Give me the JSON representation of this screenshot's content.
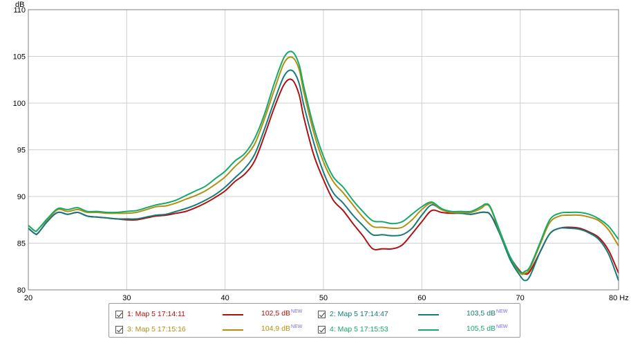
{
  "chart_data": {
    "type": "line",
    "ylabel": "dB",
    "xlim": [
      20,
      80
    ],
    "ylim": [
      80,
      110
    ],
    "x_ticks": [
      "20",
      "30",
      "40",
      "50",
      "60",
      "70",
      "80 Hz"
    ],
    "y_ticks": [
      "110",
      "105",
      "100",
      "95",
      "90",
      "85",
      "80"
    ],
    "grid": true,
    "x": [
      20,
      20.7,
      21,
      22,
      23,
      24,
      25,
      26,
      27,
      28,
      29,
      30,
      31,
      32,
      33,
      34,
      35,
      36,
      37,
      38,
      39,
      40,
      41,
      42,
      43,
      44,
      45,
      46,
      46.8,
      47.5,
      48,
      49,
      50,
      51,
      52,
      53,
      54,
      55,
      56,
      57,
      58,
      59,
      60,
      61,
      62,
      63,
      64,
      65,
      66,
      66.5,
      67,
      68,
      69,
      70,
      70.5,
      71,
      72,
      73,
      74,
      75,
      76,
      77,
      78,
      79,
      80
    ],
    "series": [
      {
        "name": "1: Мар 5 17:14:11",
        "color": "#b01010",
        "legend_value": "102,5 dB",
        "values": [
          86.6,
          86.0,
          86.1,
          87.4,
          88.3,
          88.1,
          88.3,
          87.9,
          87.8,
          87.7,
          87.6,
          87.5,
          87.5,
          87.7,
          87.9,
          88.0,
          88.2,
          88.4,
          88.8,
          89.3,
          89.9,
          90.6,
          91.6,
          92.4,
          93.8,
          96.5,
          99.5,
          102.0,
          102.5,
          101.0,
          98.5,
          94.5,
          91.8,
          89.6,
          88.5,
          87.1,
          85.8,
          84.4,
          84.4,
          84.4,
          84.8,
          86.0,
          87.3,
          88.5,
          88.3,
          88.2,
          88.2,
          88.1,
          88.3,
          88.3,
          88.0,
          86.0,
          83.5,
          82.0,
          81.7,
          82.0,
          84.0,
          86.0,
          86.6,
          86.7,
          86.6,
          86.2,
          85.6,
          84.2,
          81.8
        ]
      },
      {
        "name": "2: Мар 5 17:14:47",
        "color": "#167a7a",
        "legend_value": "103,5 dB",
        "values": [
          86.6,
          86.0,
          86.1,
          87.4,
          88.3,
          88.1,
          88.3,
          87.9,
          87.8,
          87.7,
          87.6,
          87.6,
          87.6,
          87.8,
          88.0,
          88.1,
          88.4,
          88.7,
          89.1,
          89.6,
          90.2,
          91.0,
          92.0,
          93.0,
          94.5,
          97.2,
          100.2,
          102.9,
          103.5,
          102.2,
          99.8,
          95.8,
          92.6,
          90.4,
          89.3,
          88.0,
          86.9,
          85.9,
          85.9,
          85.8,
          85.9,
          86.6,
          88.0,
          89.1,
          88.6,
          88.3,
          88.2,
          88.1,
          88.3,
          88.3,
          88.0,
          85.8,
          83.2,
          81.5,
          81.0,
          81.5,
          84.0,
          86.0,
          86.6,
          86.6,
          86.5,
          86.1,
          85.4,
          83.8,
          81.0
        ]
      },
      {
        "name": "3: Мар 5 17:15:16",
        "color": "#b09010",
        "legend_value": "104,9 dB",
        "values": [
          86.9,
          86.3,
          86.5,
          87.6,
          88.6,
          88.4,
          88.6,
          88.3,
          88.3,
          88.2,
          88.2,
          88.2,
          88.3,
          88.6,
          88.9,
          89.0,
          89.3,
          89.7,
          90.1,
          90.6,
          91.3,
          92.1,
          93.2,
          94.2,
          95.6,
          98.3,
          101.4,
          104.3,
          104.9,
          103.7,
          101.2,
          96.9,
          93.7,
          91.6,
          90.4,
          89.1,
          87.8,
          86.8,
          86.7,
          86.6,
          86.7,
          87.5,
          88.6,
          89.3,
          88.6,
          88.3,
          88.3,
          88.3,
          88.7,
          89.1,
          88.7,
          86.0,
          83.5,
          81.8,
          81.8,
          82.3,
          84.8,
          87.2,
          87.9,
          88.0,
          88.0,
          87.8,
          87.4,
          86.4,
          84.7
        ]
      },
      {
        "name": "4: Мар 5 17:15:53",
        "color": "#14a86a",
        "legend_value": "105,5 dB",
        "values": [
          86.9,
          86.3,
          86.5,
          87.7,
          88.7,
          88.6,
          88.8,
          88.4,
          88.4,
          88.3,
          88.3,
          88.4,
          88.5,
          88.8,
          89.1,
          89.3,
          89.6,
          90.1,
          90.6,
          91.1,
          91.9,
          92.7,
          93.8,
          94.6,
          96.2,
          98.8,
          102.1,
          104.9,
          105.5,
          104.2,
          101.8,
          97.5,
          94.3,
          92.1,
          91.0,
          89.6,
          88.4,
          87.4,
          87.3,
          87.1,
          87.3,
          88.1,
          88.9,
          89.4,
          88.7,
          88.4,
          88.4,
          88.4,
          88.9,
          89.2,
          88.8,
          86.1,
          83.5,
          81.9,
          82.0,
          82.5,
          85.0,
          87.5,
          88.2,
          88.3,
          88.3,
          88.1,
          87.6,
          86.8,
          85.4
        ]
      }
    ]
  },
  "legend": {
    "new_tag": "NEW",
    "entries": [
      {
        "label": "1: Мар 5 17:14:11",
        "value": "102,5 dB",
        "color": "#b01010"
      },
      {
        "label": "2: Мар 5 17:14:47",
        "value": "103,5 dB",
        "color": "#167a7a"
      },
      {
        "label": "3: Мар 5 17:15:16",
        "value": "104,9 dB",
        "color": "#b09010"
      },
      {
        "label": "4: Мар 5 17:15:53",
        "value": "105,5 dB",
        "color": "#14a86a"
      }
    ]
  }
}
